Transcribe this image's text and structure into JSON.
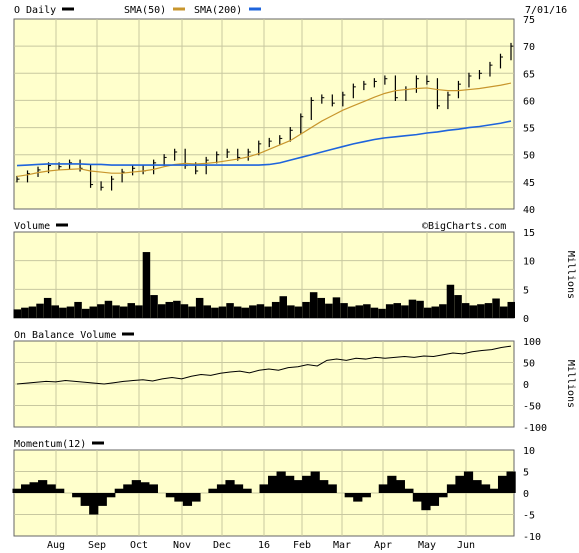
{
  "header": {
    "symbol_label": "O Daily",
    "sma50_label": "SMA(50)",
    "sma200_label": "SMA(200)",
    "date": "7/01/16",
    "credit": "©BigCharts.com"
  },
  "colors": {
    "background": "#ffffcc",
    "grid": "#c8c8a0",
    "price": "#000000",
    "sma50": "#c8962d",
    "sma200": "#1e64dc"
  },
  "chart_data": [
    {
      "type": "line",
      "name": "price",
      "x_labels": [
        "Aug",
        "Sep",
        "Oct",
        "Nov",
        "Dec",
        "16",
        "Feb",
        "Mar",
        "Apr",
        "May",
        "Jun"
      ],
      "ylim": [
        40,
        75
      ],
      "yticks": [
        40,
        45,
        50,
        55,
        60,
        65,
        70,
        75
      ],
      "series": [
        {
          "name": "O Daily",
          "values": [
            45.5,
            46.5,
            47.2,
            48.0,
            47.8,
            48.5,
            47.5,
            44.5,
            44.0,
            45.5,
            46.8,
            47.5,
            47.0,
            48.5,
            49.5,
            50.5,
            48.0,
            47.0,
            49.0,
            50.0,
            50.5,
            49.5,
            50.5,
            52.0,
            52.5,
            53.0,
            54.5,
            57.0,
            60.0,
            60.5,
            59.5,
            61.0,
            62.5,
            63.0,
            63.5,
            64.0,
            60.5,
            62.0,
            64.0,
            63.5,
            59.0,
            61.0,
            63.0,
            64.5,
            65.0,
            66.5,
            68.0,
            70.0
          ]
        },
        {
          "name": "SMA(50)",
          "values": [
            46.0,
            46.3,
            46.7,
            47.0,
            47.2,
            47.3,
            47.4,
            47.0,
            46.8,
            46.6,
            46.6,
            46.8,
            47.0,
            47.3,
            47.8,
            48.2,
            48.4,
            48.3,
            48.4,
            48.6,
            48.9,
            49.2,
            49.6,
            50.2,
            51.0,
            51.8,
            52.6,
            53.8,
            55.0,
            56.2,
            57.2,
            58.2,
            59.0,
            59.8,
            60.6,
            61.3,
            61.8,
            62.0,
            62.2,
            62.3,
            62.0,
            61.8,
            61.8,
            62.0,
            62.2,
            62.5,
            62.8,
            63.2
          ]
        },
        {
          "name": "SMA(200)",
          "values": [
            48.0,
            48.1,
            48.2,
            48.3,
            48.3,
            48.3,
            48.3,
            48.2,
            48.2,
            48.1,
            48.1,
            48.1,
            48.1,
            48.1,
            48.1,
            48.1,
            48.1,
            48.1,
            48.1,
            48.1,
            48.1,
            48.1,
            48.1,
            48.1,
            48.2,
            48.5,
            49.0,
            49.5,
            50.0,
            50.5,
            51.0,
            51.5,
            52.0,
            52.4,
            52.8,
            53.1,
            53.3,
            53.5,
            53.7,
            54.0,
            54.2,
            54.5,
            54.7,
            55.0,
            55.2,
            55.5,
            55.8,
            56.2
          ]
        }
      ]
    },
    {
      "type": "area",
      "name": "volume",
      "title": "Volume",
      "ylabel": "Millions",
      "ylim": [
        0,
        15
      ],
      "yticks": [
        0,
        5,
        10,
        15
      ],
      "values": [
        1.5,
        1.8,
        2.0,
        2.5,
        3.5,
        2.2,
        1.8,
        2.0,
        2.8,
        1.6,
        2.0,
        2.4,
        3.0,
        2.2,
        2.0,
        2.6,
        2.2,
        11.5,
        4.0,
        2.4,
        2.8,
        3.0,
        2.4,
        2.0,
        3.5,
        2.2,
        1.8,
        2.0,
        2.6,
        2.0,
        1.8,
        2.2,
        2.4,
        2.0,
        2.8,
        3.8,
        2.2,
        2.0,
        2.8,
        4.5,
        3.5,
        2.5,
        3.6,
        2.6,
        2.0,
        2.2,
        2.4,
        1.8,
        1.6,
        2.4,
        2.6,
        2.2,
        3.2,
        3.0,
        1.8,
        2.0,
        2.4,
        5.8,
        4.0,
        2.6,
        2.2,
        2.4,
        2.6,
        3.4,
        2.0,
        2.8
      ]
    },
    {
      "type": "line",
      "name": "obv",
      "title": "On Balance Volume",
      "ylabel": "Millions",
      "ylim": [
        -100,
        100
      ],
      "yticks": [
        100,
        50,
        0,
        -50,
        -100
      ],
      "values": [
        0,
        2,
        4,
        6,
        5,
        8,
        6,
        4,
        2,
        0,
        3,
        6,
        8,
        10,
        7,
        12,
        15,
        12,
        18,
        22,
        20,
        25,
        28,
        30,
        26,
        32,
        35,
        32,
        38,
        40,
        45,
        42,
        55,
        58,
        55,
        60,
        58,
        62,
        60,
        62,
        64,
        62,
        65,
        64,
        68,
        72,
        70,
        75,
        78,
        80,
        85,
        88
      ]
    },
    {
      "type": "area",
      "name": "momentum",
      "title": "Momentum(12)",
      "ylim": [
        -10,
        10
      ],
      "yticks": [
        10,
        5,
        0,
        -5,
        -10
      ],
      "values": [
        1,
        2,
        2.5,
        3,
        2,
        1,
        0,
        -1,
        -3,
        -5,
        -3,
        -1,
        1,
        2,
        3,
        2.5,
        2,
        0,
        -1,
        -2,
        -3,
        -2,
        0,
        1,
        2,
        3,
        2,
        1,
        0,
        2,
        4,
        5,
        4,
        3,
        4,
        5,
        3,
        2,
        0,
        -1,
        -2,
        -1,
        0,
        2,
        4,
        3,
        1,
        -2,
        -4,
        -3,
        -1,
        2,
        4,
        5,
        3,
        2,
        1,
        4,
        5
      ]
    }
  ]
}
